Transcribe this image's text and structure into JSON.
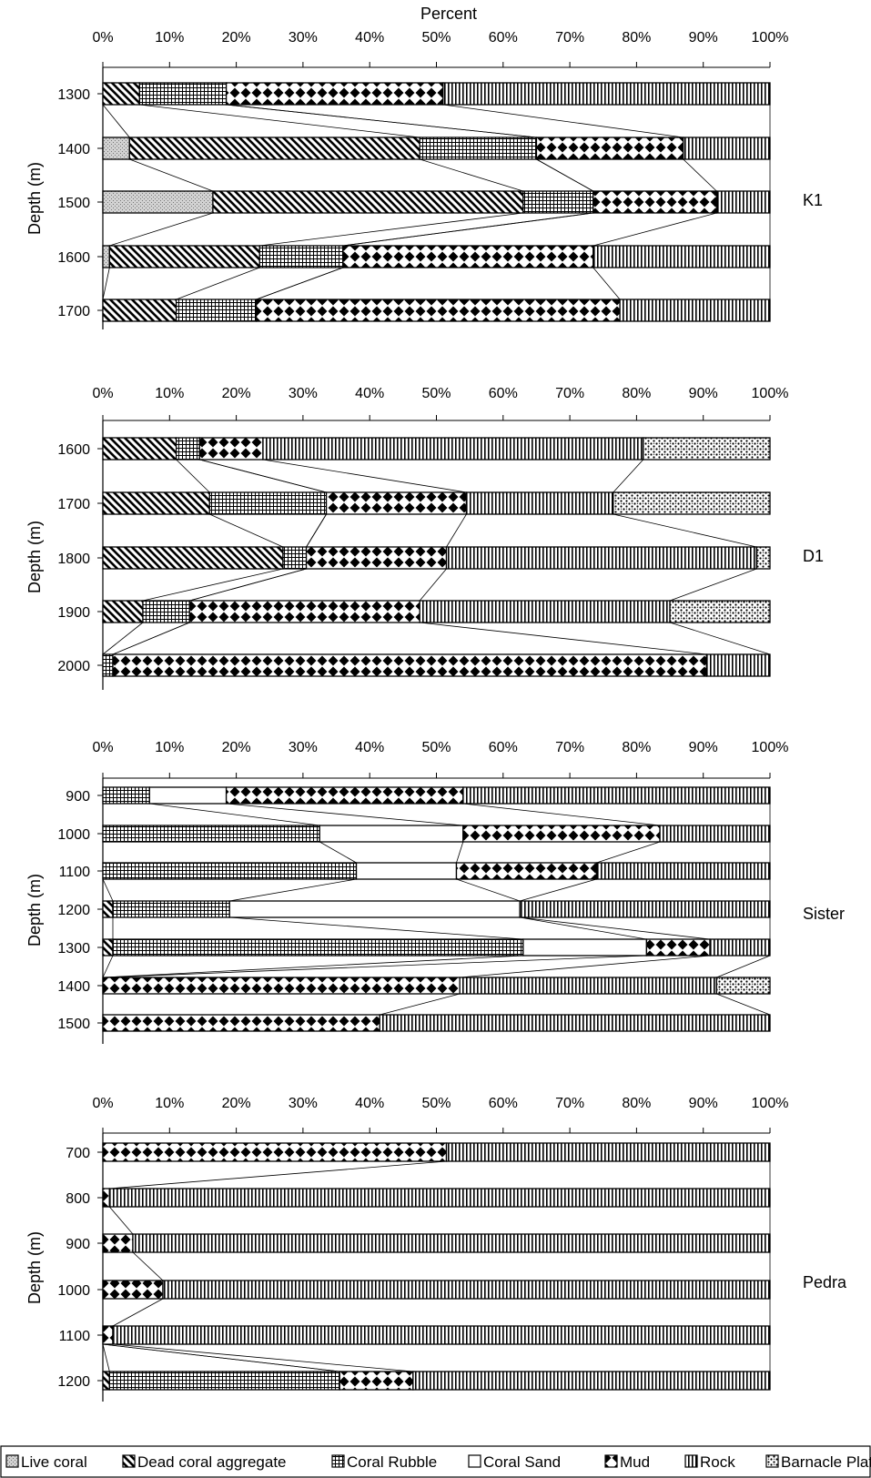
{
  "chart_data": [
    {
      "type": "bar",
      "stacked": "percent",
      "site": "K1",
      "title": "Percent",
      "ylabel": "Depth (m)",
      "xlim": [
        0,
        100
      ],
      "x_ticks": [
        "0%",
        "10%",
        "20%",
        "30%",
        "40%",
        "50%",
        "60%",
        "70%",
        "80%",
        "90%",
        "100%"
      ],
      "categories": [
        "1300",
        "1400",
        "1500",
        "1600",
        "1700"
      ],
      "series": [
        {
          "name": "Live coral",
          "values": [
            0,
            4,
            16.5,
            1,
            0
          ]
        },
        {
          "name": "Dead coral aggregate",
          "values": [
            5.5,
            43.5,
            46.5,
            22.5,
            11
          ]
        },
        {
          "name": "Coral Rubble",
          "values": [
            13,
            17.5,
            10.5,
            12.5,
            12
          ]
        },
        {
          "name": "Coral Sand",
          "values": [
            0,
            0,
            0,
            0,
            0
          ]
        },
        {
          "name": "Mud",
          "values": [
            32.5,
            22,
            18.5,
            37.5,
            54.5
          ]
        },
        {
          "name": "Rock",
          "values": [
            49,
            13,
            8,
            26.5,
            22.5
          ]
        },
        {
          "name": "Barnacle Plates",
          "values": [
            0,
            0,
            0,
            0,
            0
          ]
        }
      ]
    },
    {
      "type": "bar",
      "stacked": "percent",
      "site": "D1",
      "title": "",
      "ylabel": "Depth (m)",
      "xlim": [
        0,
        100
      ],
      "x_ticks": [
        "0%",
        "10%",
        "20%",
        "30%",
        "40%",
        "50%",
        "60%",
        "70%",
        "80%",
        "90%",
        "100%"
      ],
      "categories": [
        "1600",
        "1700",
        "1800",
        "1900",
        "2000"
      ],
      "series": [
        {
          "name": "Live coral",
          "values": [
            0,
            0,
            0,
            0,
            0
          ]
        },
        {
          "name": "Dead coral aggregate",
          "values": [
            11,
            16,
            27,
            6,
            0
          ]
        },
        {
          "name": "Coral Rubble",
          "values": [
            3.5,
            17.5,
            3.5,
            7,
            1.5
          ]
        },
        {
          "name": "Coral Sand",
          "values": [
            0,
            0,
            0,
            0,
            0
          ]
        },
        {
          "name": "Mud",
          "values": [
            9.5,
            21,
            21,
            34.5,
            89
          ]
        },
        {
          "name": "Rock",
          "values": [
            57,
            22,
            46.5,
            37.5,
            9.5
          ]
        },
        {
          "name": "Barnacle Plates",
          "values": [
            19,
            23.5,
            2,
            15,
            0
          ]
        }
      ]
    },
    {
      "type": "bar",
      "stacked": "percent",
      "site": "Sister",
      "title": "",
      "ylabel": "Depth (m)",
      "xlim": [
        0,
        100
      ],
      "x_ticks": [
        "0%",
        "10%",
        "20%",
        "30%",
        "40%",
        "50%",
        "60%",
        "70%",
        "80%",
        "90%",
        "100%"
      ],
      "categories": [
        "900",
        "1000",
        "1100",
        "1200",
        "1300",
        "1400",
        "1500"
      ],
      "series": [
        {
          "name": "Live coral",
          "values": [
            0,
            0,
            0,
            0,
            0,
            0,
            0
          ]
        },
        {
          "name": "Dead coral aggregate",
          "values": [
            0,
            0,
            0,
            1.5,
            1.5,
            0,
            0
          ]
        },
        {
          "name": "Coral Rubble",
          "values": [
            7,
            32.5,
            38,
            17.5,
            61.5,
            0,
            0
          ]
        },
        {
          "name": "Coral Sand",
          "values": [
            11.5,
            21.5,
            15,
            43.5,
            18.5,
            0,
            0
          ]
        },
        {
          "name": "Mud",
          "values": [
            35.5,
            29.5,
            21,
            0,
            9.5,
            53.5,
            41.5
          ]
        },
        {
          "name": "Rock",
          "values": [
            46,
            16.5,
            26,
            37.5,
            9,
            38.5,
            58.5
          ]
        },
        {
          "name": "Barnacle Plates",
          "values": [
            0,
            0,
            0,
            0,
            0,
            8,
            0
          ]
        }
      ]
    },
    {
      "type": "bar",
      "stacked": "percent",
      "site": "Pedra",
      "title": "",
      "ylabel": "Depth (m)",
      "xlim": [
        0,
        100
      ],
      "x_ticks": [
        "0%",
        "10%",
        "20%",
        "30%",
        "40%",
        "50%",
        "60%",
        "70%",
        "80%",
        "90%",
        "100%"
      ],
      "categories": [
        "700",
        "800",
        "900",
        "1000",
        "1100",
        "1200"
      ],
      "series": [
        {
          "name": "Live coral",
          "values": [
            0,
            0,
            0,
            0,
            0,
            0
          ]
        },
        {
          "name": "Dead coral aggregate",
          "values": [
            0,
            0,
            0,
            0,
            0,
            1
          ]
        },
        {
          "name": "Coral Rubble",
          "values": [
            0,
            0,
            0,
            0,
            0,
            34.5
          ]
        },
        {
          "name": "Coral Sand",
          "values": [
            0,
            0,
            0,
            0,
            0,
            0
          ]
        },
        {
          "name": "Mud",
          "values": [
            51.5,
            1,
            4.5,
            9,
            1.5,
            11
          ]
        },
        {
          "name": "Rock",
          "values": [
            48.5,
            99,
            95.5,
            91,
            98.5,
            53.5
          ]
        },
        {
          "name": "Barnacle Plates",
          "values": [
            0,
            0,
            0,
            0,
            0,
            0
          ]
        }
      ]
    }
  ],
  "legend": {
    "placement": "bottom",
    "items": [
      {
        "label": "Live coral",
        "pattern": "stipple"
      },
      {
        "label": "Dead coral aggregate",
        "pattern": "diagonal"
      },
      {
        "label": "Coral Rubble",
        "pattern": "grid"
      },
      {
        "label": "Coral Sand",
        "pattern": "blank"
      },
      {
        "label": "Mud",
        "pattern": "checker-diamond"
      },
      {
        "label": "Rock",
        "pattern": "vertical"
      },
      {
        "label": "Barnacle Plates",
        "pattern": "speckle"
      }
    ]
  }
}
